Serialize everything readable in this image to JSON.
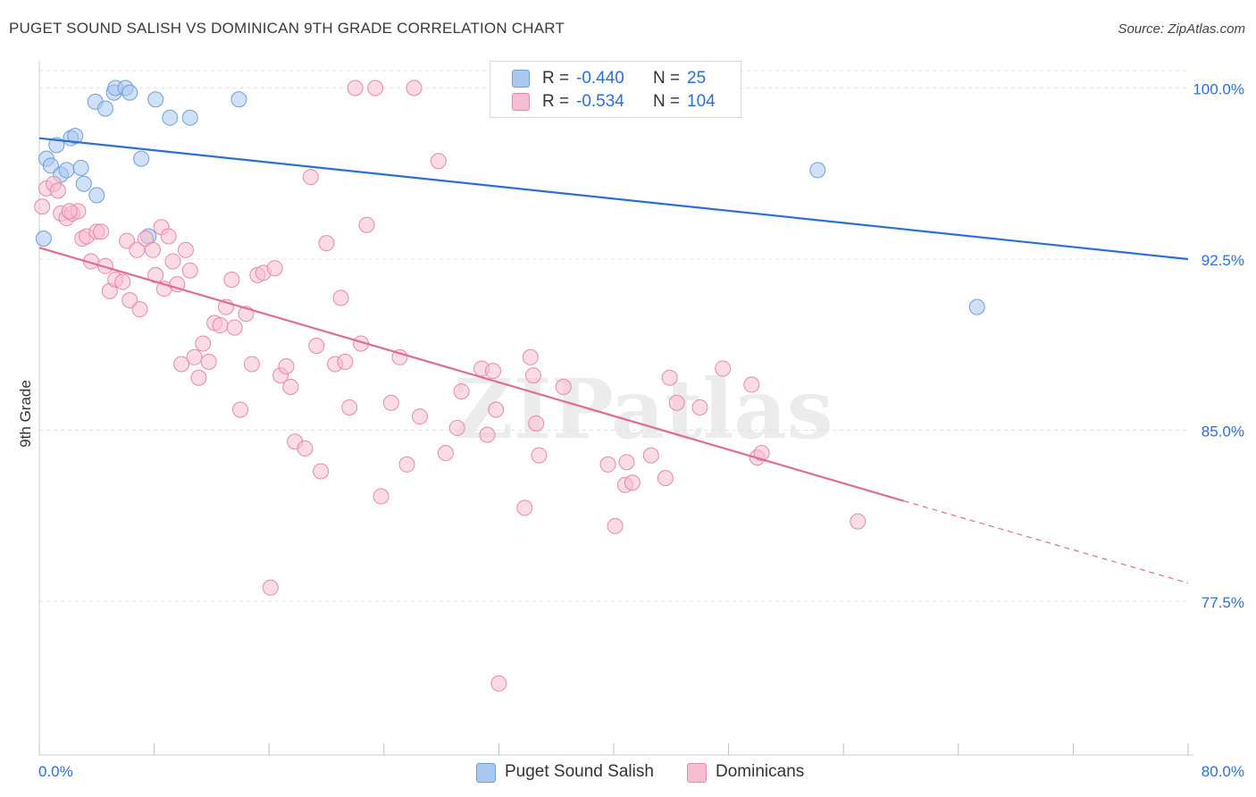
{
  "header": {
    "title": "PUGET SOUND SALISH VS DOMINICAN 9TH GRADE CORRELATION CHART",
    "source": "Source: ZipAtlas.com"
  },
  "watermark": "ZIPatlas",
  "legend": {
    "rows": [
      {
        "r_label": "R =",
        "r_value": "-0.440",
        "n_label": "N =",
        "n_value": "25",
        "color": "#a9c8f0",
        "border": "#6f9fd8"
      },
      {
        "r_label": "R =",
        "r_value": "-0.534",
        "n_label": "N =",
        "n_value": "104",
        "color": "#f7bdd0",
        "border": "#e889aa"
      }
    ]
  },
  "bottom_legend": [
    {
      "label": "Puget Sound Salish",
      "color": "#a9c8f0",
      "border": "#6f9fd8"
    },
    {
      "label": "Dominicans",
      "color": "#f7bdd0",
      "border": "#e889aa"
    }
  ],
  "chart_data": {
    "type": "scatter",
    "xlabel": "",
    "ylabel": "9th Grade",
    "xlim": [
      0.0,
      80.0
    ],
    "ylim": [
      71.0,
      101.0
    ],
    "x_tick_labels": [
      "0.0%",
      "80.0%"
    ],
    "y_ticks": [
      77.5,
      85.0,
      92.5,
      100.0
    ],
    "y_tick_labels": [
      "77.5%",
      "85.0%",
      "92.5%",
      "100.0%"
    ],
    "grid": true,
    "legend_position": "top-center",
    "series": [
      {
        "name": "Puget Sound Salish",
        "color": "#6f9fd8",
        "fill": "#a9c8f0",
        "trend": {
          "x": [
            0.0,
            80.0
          ],
          "y": [
            97.8,
            92.5
          ],
          "color": "#2b6fd6"
        },
        "points": [
          [
            0.3,
            93.4
          ],
          [
            0.5,
            96.9
          ],
          [
            0.8,
            96.6
          ],
          [
            1.2,
            97.5
          ],
          [
            1.5,
            96.2
          ],
          [
            1.9,
            96.4
          ],
          [
            2.2,
            97.8
          ],
          [
            2.5,
            97.9
          ],
          [
            2.9,
            96.5
          ],
          [
            3.1,
            95.8
          ],
          [
            4.0,
            95.3
          ],
          [
            3.9,
            99.4
          ],
          [
            4.6,
            99.1
          ],
          [
            5.2,
            99.8
          ],
          [
            5.3,
            100.0
          ],
          [
            6.0,
            100.0
          ],
          [
            6.3,
            99.8
          ],
          [
            7.1,
            96.9
          ],
          [
            7.6,
            93.5
          ],
          [
            8.1,
            99.5
          ],
          [
            9.1,
            98.7
          ],
          [
            10.5,
            98.7
          ],
          [
            13.9,
            99.5
          ],
          [
            54.2,
            96.4
          ],
          [
            65.3,
            90.4
          ]
        ]
      },
      {
        "name": "Dominicans",
        "color": "#e889aa",
        "fill": "#f7bdd0",
        "trend": {
          "x": [
            0.0,
            60.2
          ],
          "y": [
            93.0,
            81.9
          ],
          "color": "#e06b95"
        },
        "trend_dashed": {
          "x": [
            60.2,
            80.0
          ],
          "y": [
            81.9,
            78.3
          ]
        },
        "points": [
          [
            0.2,
            94.8
          ],
          [
            0.5,
            95.6
          ],
          [
            1.0,
            95.8
          ],
          [
            1.3,
            95.5
          ],
          [
            1.5,
            94.5
          ],
          [
            1.9,
            94.3
          ],
          [
            2.3,
            94.5
          ],
          [
            2.7,
            94.6
          ],
          [
            3.0,
            93.4
          ],
          [
            3.3,
            93.5
          ],
          [
            3.6,
            92.4
          ],
          [
            4.0,
            93.7
          ],
          [
            4.3,
            93.7
          ],
          [
            4.6,
            92.2
          ],
          [
            4.9,
            91.1
          ],
          [
            5.3,
            91.6
          ],
          [
            5.8,
            91.5
          ],
          [
            6.1,
            93.3
          ],
          [
            6.3,
            90.7
          ],
          [
            6.8,
            92.9
          ],
          [
            7.0,
            90.3
          ],
          [
            7.4,
            93.4
          ],
          [
            7.9,
            92.9
          ],
          [
            8.1,
            91.8
          ],
          [
            8.5,
            93.9
          ],
          [
            8.7,
            91.2
          ],
          [
            9.0,
            93.5
          ],
          [
            9.3,
            92.4
          ],
          [
            9.6,
            91.4
          ],
          [
            9.9,
            87.9
          ],
          [
            10.2,
            92.9
          ],
          [
            10.5,
            92.0
          ],
          [
            10.8,
            88.2
          ],
          [
            11.1,
            87.3
          ],
          [
            11.4,
            88.8
          ],
          [
            11.8,
            88.0
          ],
          [
            12.2,
            89.7
          ],
          [
            12.6,
            89.6
          ],
          [
            13.0,
            90.4
          ],
          [
            13.4,
            91.6
          ],
          [
            13.6,
            89.5
          ],
          [
            14.0,
            85.9
          ],
          [
            14.4,
            90.1
          ],
          [
            14.8,
            87.9
          ],
          [
            15.2,
            91.8
          ],
          [
            15.6,
            91.9
          ],
          [
            16.4,
            92.1
          ],
          [
            16.8,
            87.4
          ],
          [
            17.2,
            87.8
          ],
          [
            17.5,
            86.9
          ],
          [
            17.8,
            84.5
          ],
          [
            18.5,
            84.2
          ],
          [
            18.9,
            96.1
          ],
          [
            19.3,
            88.7
          ],
          [
            19.6,
            83.2
          ],
          [
            20.0,
            93.2
          ],
          [
            20.6,
            87.9
          ],
          [
            21.0,
            90.8
          ],
          [
            21.3,
            88.0
          ],
          [
            21.6,
            86.0
          ],
          [
            22.0,
            100.0
          ],
          [
            22.4,
            88.8
          ],
          [
            22.8,
            94.0
          ],
          [
            23.4,
            100.0
          ],
          [
            23.8,
            82.1
          ],
          [
            24.5,
            86.2
          ],
          [
            25.1,
            88.2
          ],
          [
            25.6,
            83.5
          ],
          [
            26.1,
            100.0
          ],
          [
            26.5,
            85.6
          ],
          [
            27.8,
            96.8
          ],
          [
            28.3,
            84.0
          ],
          [
            29.1,
            85.1
          ],
          [
            29.4,
            86.7
          ],
          [
            30.8,
            87.7
          ],
          [
            31.2,
            84.8
          ],
          [
            31.6,
            87.6
          ],
          [
            31.8,
            85.9
          ],
          [
            32.0,
            73.9
          ],
          [
            32.7,
            100.0
          ],
          [
            33.8,
            81.6
          ],
          [
            34.2,
            88.2
          ],
          [
            34.4,
            87.4
          ],
          [
            34.6,
            85.3
          ],
          [
            34.8,
            83.9
          ],
          [
            36.5,
            86.9
          ],
          [
            39.6,
            83.5
          ],
          [
            40.1,
            80.8
          ],
          [
            40.8,
            82.6
          ],
          [
            40.9,
            83.6
          ],
          [
            41.3,
            82.7
          ],
          [
            42.6,
            83.9
          ],
          [
            43.6,
            82.9
          ],
          [
            43.9,
            87.3
          ],
          [
            44.4,
            86.2
          ],
          [
            46.0,
            86.0
          ],
          [
            47.6,
            87.7
          ],
          [
            49.6,
            87.0
          ],
          [
            50.0,
            83.8
          ],
          [
            50.3,
            84.0
          ],
          [
            57.0,
            81.0
          ],
          [
            16.1,
            78.1
          ],
          [
            43.3,
            100.0
          ],
          [
            2.1,
            94.6
          ]
        ]
      }
    ]
  }
}
